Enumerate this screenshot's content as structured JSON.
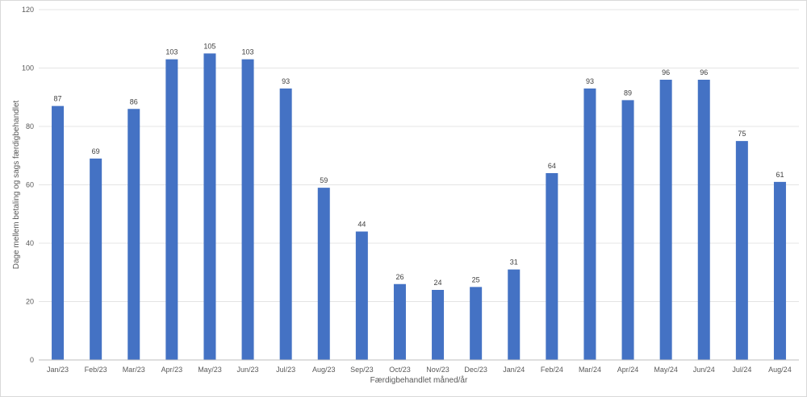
{
  "chart_data": {
    "type": "bar",
    "categories": [
      "Jan/23",
      "Feb/23",
      "Mar/23",
      "Apr/23",
      "May/23",
      "Jun/23",
      "Jul/23",
      "Aug/23",
      "Sep/23",
      "Oct/23",
      "Nov/23",
      "Dec/23",
      "Jan/24",
      "Feb/24",
      "Mar/24",
      "Apr/24",
      "May/24",
      "Jun/24",
      "Jul/24",
      "Aug/24"
    ],
    "values": [
      87,
      69,
      86,
      103,
      105,
      103,
      93,
      59,
      44,
      26,
      24,
      25,
      31,
      64,
      93,
      89,
      96,
      96,
      75,
      61
    ],
    "value_labels": [
      "87",
      "69",
      "86",
      "103",
      "105",
      "103",
      "93",
      "59",
      "44",
      "26",
      "24",
      "25",
      "31",
      "64",
      "93",
      "89",
      "96",
      "96",
      "75",
      "61"
    ],
    "title": "",
    "xlabel": "Færdigbehandlet måned/år",
    "ylabel": "Dage mellem betaling og sags færdigbehandlet",
    "ylim": [
      0,
      120
    ],
    "yticks": [
      0,
      20,
      40,
      60,
      80,
      100,
      120
    ],
    "ytick_labels": [
      "0",
      "20",
      "40",
      "60",
      "80",
      "100",
      "120"
    ],
    "grid": true,
    "legend": "none",
    "bar_color": "#4472c4"
  }
}
